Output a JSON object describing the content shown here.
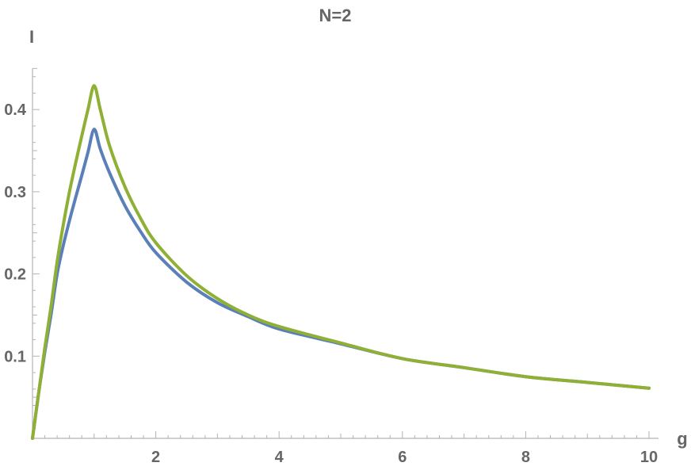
{
  "chart_data": {
    "type": "line",
    "title": "N=2",
    "xlabel": "g",
    "ylabel": "I",
    "xlim": [
      0,
      10
    ],
    "ylim": [
      0,
      0.45
    ],
    "x_ticks": [
      2,
      4,
      6,
      8,
      10
    ],
    "y_ticks": [
      0.1,
      0.2,
      0.3,
      0.4
    ],
    "x_tick_labels": [
      "2",
      "4",
      "6",
      "8",
      "10"
    ],
    "y_tick_labels": [
      "0.1",
      "0.2",
      "0.3",
      "0.4"
    ],
    "grid": false,
    "series": [
      {
        "color": "#5b80b8",
        "x": [
          0,
          0.1,
          0.2,
          0.3,
          0.4,
          0.5,
          0.6,
          0.7,
          0.8,
          0.9,
          1.0,
          1.1,
          1.25,
          1.5,
          1.75,
          2.0,
          2.5,
          3.0,
          3.5,
          4.0,
          5.0,
          6.0,
          7.0,
          8.0,
          9.0,
          10.0
        ],
        "y": [
          0,
          0.055,
          0.105,
          0.15,
          0.2,
          0.235,
          0.265,
          0.293,
          0.32,
          0.348,
          0.376,
          0.352,
          0.323,
          0.283,
          0.252,
          0.226,
          0.19,
          0.165,
          0.148,
          0.133,
          0.115,
          0.097,
          0.086,
          0.075,
          0.068,
          0.061
        ]
      },
      {
        "color": "#8fb035",
        "x": [
          0,
          0.1,
          0.2,
          0.3,
          0.4,
          0.5,
          0.6,
          0.7,
          0.8,
          0.9,
          1.0,
          1.1,
          1.25,
          1.5,
          1.75,
          2.0,
          2.5,
          3.0,
          3.5,
          4.0,
          5.0,
          6.0,
          7.0,
          8.0,
          9.0,
          10.0
        ],
        "y": [
          0,
          0.055,
          0.11,
          0.16,
          0.215,
          0.26,
          0.3,
          0.335,
          0.368,
          0.4,
          0.429,
          0.4,
          0.356,
          0.306,
          0.268,
          0.238,
          0.198,
          0.17,
          0.15,
          0.136,
          0.116,
          0.097,
          0.086,
          0.075,
          0.068,
          0.061
        ]
      }
    ]
  }
}
